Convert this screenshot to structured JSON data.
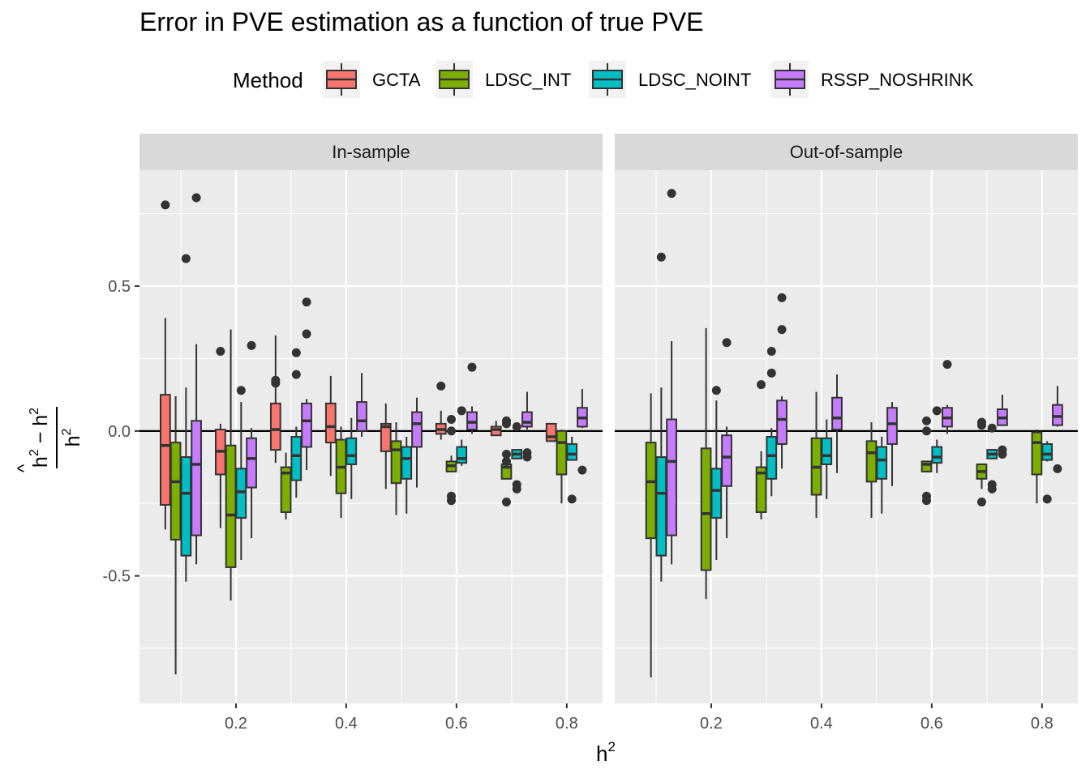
{
  "chart_data": {
    "type": "boxplot",
    "title": "Error in PVE estimation as a function of true PVE",
    "xlabel": "h2",
    "ylabel": "(ĥ2 − h2) / h2",
    "legend": {
      "title": "Method",
      "position": "top",
      "entries": [
        {
          "name": "GCTA",
          "color": "#F8766D"
        },
        {
          "name": "LDSC_INT",
          "color": "#7CAE00"
        },
        {
          "name": "LDSC_NOINT",
          "color": "#00BFC4"
        },
        {
          "name": "RSSP_NOSHRINK",
          "color": "#C77CFF"
        }
      ]
    },
    "xlim": [
      0.025,
      0.865
    ],
    "ylim": [
      -0.94,
      0.9
    ],
    "x_ticks": [
      0.2,
      0.4,
      0.6,
      0.8
    ],
    "x_tick_labels": [
      "0.2",
      "0.4",
      "0.6",
      "0.8"
    ],
    "y_ticks": [
      -0.5,
      0.0,
      0.5
    ],
    "y_tick_labels": [
      "-0.5",
      "0.0",
      "0.5"
    ],
    "reference_line_y": 0,
    "grid": true,
    "panels": [
      {
        "name": "In-sample",
        "boxes": [
          {
            "method": "GCTA",
            "x": 0.1,
            "lw": -0.34,
            "q1": -0.255,
            "med": -0.05,
            "q3": 0.125,
            "uw": 0.39,
            "out": [
              0.78
            ]
          },
          {
            "method": "LDSC_INT",
            "x": 0.1,
            "lw": -0.84,
            "q1": -0.375,
            "med": -0.175,
            "q3": -0.04,
            "uw": 0.12,
            "out": []
          },
          {
            "method": "LDSC_NOINT",
            "x": 0.1,
            "lw": -0.52,
            "q1": -0.43,
            "med": -0.215,
            "q3": -0.09,
            "uw": 0.15,
            "out": [
              0.595
            ]
          },
          {
            "method": "RSSP_NOSHRINK",
            "x": 0.1,
            "lw": -0.46,
            "q1": -0.36,
            "med": -0.115,
            "q3": 0.035,
            "uw": 0.3,
            "out": [
              0.805
            ]
          },
          {
            "method": "GCTA",
            "x": 0.2,
            "lw": -0.335,
            "q1": -0.15,
            "med": -0.07,
            "q3": 0.005,
            "uw": 0.025,
            "out": [
              0.275
            ]
          },
          {
            "method": "LDSC_INT",
            "x": 0.2,
            "lw": -0.585,
            "q1": -0.47,
            "med": -0.29,
            "q3": -0.05,
            "uw": 0.35,
            "out": []
          },
          {
            "method": "LDSC_NOINT",
            "x": 0.2,
            "lw": -0.445,
            "q1": -0.3,
            "med": -0.21,
            "q3": -0.13,
            "uw": 0.1,
            "out": [
              0.14
            ]
          },
          {
            "method": "RSSP_NOSHRINK",
            "x": 0.2,
            "lw": -0.37,
            "q1": -0.195,
            "med": -0.095,
            "q3": -0.025,
            "uw": 0.01,
            "out": [
              0.295
            ]
          },
          {
            "method": "GCTA",
            "x": 0.3,
            "lw": -0.11,
            "q1": -0.065,
            "med": 0.005,
            "q3": 0.095,
            "uw": 0.33,
            "out": [
              0.165,
              0.175
            ]
          },
          {
            "method": "LDSC_INT",
            "x": 0.3,
            "lw": -0.305,
            "q1": -0.28,
            "med": -0.145,
            "q3": -0.125,
            "uw": -0.075,
            "out": []
          },
          {
            "method": "LDSC_NOINT",
            "x": 0.3,
            "lw": -0.23,
            "q1": -0.17,
            "med": -0.085,
            "q3": -0.02,
            "uw": 0.015,
            "out": [
              0.27,
              0.195
            ]
          },
          {
            "method": "RSSP_NOSHRINK",
            "x": 0.3,
            "lw": -0.135,
            "q1": -0.055,
            "med": 0.035,
            "q3": 0.095,
            "uw": 0.11,
            "out": [
              0.445,
              0.335
            ]
          },
          {
            "method": "GCTA",
            "x": 0.4,
            "lw": -0.155,
            "q1": -0.04,
            "med": 0.015,
            "q3": 0.095,
            "uw": 0.19,
            "out": []
          },
          {
            "method": "LDSC_INT",
            "x": 0.4,
            "lw": -0.3,
            "q1": -0.215,
            "med": -0.125,
            "q3": -0.03,
            "uw": 0.015,
            "out": []
          },
          {
            "method": "LDSC_NOINT",
            "x": 0.4,
            "lw": -0.235,
            "q1": -0.115,
            "med": -0.085,
            "q3": -0.025,
            "uw": 0.045,
            "out": []
          },
          {
            "method": "RSSP_NOSHRINK",
            "x": 0.4,
            "lw": -0.02,
            "q1": 0.0,
            "med": 0.035,
            "q3": 0.1,
            "uw": 0.2,
            "out": []
          },
          {
            "method": "GCTA",
            "x": 0.5,
            "lw": -0.2,
            "q1": -0.07,
            "med": 0.015,
            "q3": 0.025,
            "uw": 0.095,
            "out": []
          },
          {
            "method": "LDSC_INT",
            "x": 0.5,
            "lw": -0.29,
            "q1": -0.18,
            "med": -0.065,
            "q3": -0.035,
            "uw": 0.03,
            "out": []
          },
          {
            "method": "LDSC_NOINT",
            "x": 0.5,
            "lw": -0.285,
            "q1": -0.165,
            "med": -0.095,
            "q3": -0.055,
            "uw": -0.02,
            "out": []
          },
          {
            "method": "RSSP_NOSHRINK",
            "x": 0.5,
            "lw": -0.195,
            "q1": -0.055,
            "med": 0.025,
            "q3": 0.065,
            "uw": 0.115,
            "out": []
          },
          {
            "method": "GCTA",
            "x": 0.6,
            "lw": -0.03,
            "q1": -0.01,
            "med": 0.005,
            "q3": 0.025,
            "uw": 0.07,
            "out": [
              0.155
            ]
          },
          {
            "method": "LDSC_INT",
            "x": 0.6,
            "lw": -0.14,
            "q1": -0.14,
            "med": -0.12,
            "q3": -0.105,
            "uw": -0.085,
            "out": [
              0.04,
              0.0,
              -0.225,
              -0.24
            ]
          },
          {
            "method": "LDSC_NOINT",
            "x": 0.6,
            "lw": -0.12,
            "q1": -0.11,
            "med": -0.095,
            "q3": -0.055,
            "uw": -0.03,
            "out": [
              0.07
            ]
          },
          {
            "method": "RSSP_NOSHRINK",
            "x": 0.6,
            "lw": -0.01,
            "q1": 0.005,
            "med": 0.03,
            "q3": 0.065,
            "uw": 0.085,
            "out": [
              0.22
            ]
          },
          {
            "method": "GCTA",
            "x": 0.7,
            "lw": -0.015,
            "q1": -0.015,
            "med": 0.005,
            "q3": 0.015,
            "uw": 0.035,
            "out": []
          },
          {
            "method": "LDSC_INT",
            "x": 0.7,
            "lw": -0.165,
            "q1": -0.165,
            "med": -0.125,
            "q3": -0.115,
            "uw": -0.105,
            "out": [
              0.035,
              0.025,
              -0.08,
              -0.105,
              -0.245
            ]
          },
          {
            "method": "LDSC_NOINT",
            "x": 0.7,
            "lw": -0.095,
            "q1": -0.095,
            "med": -0.08,
            "q3": -0.065,
            "uw": -0.065,
            "out": [
              0.015,
              -0.185,
              -0.2
            ]
          },
          {
            "method": "RSSP_NOSHRINK",
            "x": 0.7,
            "lw": 0.005,
            "q1": 0.015,
            "med": 0.03,
            "q3": 0.065,
            "uw": 0.135,
            "out": [
              -0.075,
              -0.09
            ]
          },
          {
            "method": "GCTA",
            "x": 0.8,
            "lw": -0.035,
            "q1": -0.035,
            "med": -0.02,
            "q3": 0.025,
            "uw": 0.025,
            "out": []
          },
          {
            "method": "LDSC_INT",
            "x": 0.8,
            "lw": -0.25,
            "q1": -0.15,
            "med": -0.04,
            "q3": 0.0,
            "uw": 0.005,
            "out": []
          },
          {
            "method": "LDSC_NOINT",
            "x": 0.8,
            "lw": -0.1,
            "q1": -0.1,
            "med": -0.08,
            "q3": -0.045,
            "uw": -0.02,
            "out": [
              -0.235
            ]
          },
          {
            "method": "RSSP_NOSHRINK",
            "x": 0.8,
            "lw": 0.01,
            "q1": 0.015,
            "med": 0.045,
            "q3": 0.08,
            "uw": 0.145,
            "out": [
              -0.135
            ]
          }
        ]
      },
      {
        "name": "Out-of-sample",
        "boxes": [
          {
            "method": "LDSC_INT",
            "x": 0.1,
            "lw": -0.85,
            "q1": -0.37,
            "med": -0.175,
            "q3": -0.04,
            "uw": 0.13,
            "out": []
          },
          {
            "method": "LDSC_NOINT",
            "x": 0.1,
            "lw": -0.52,
            "q1": -0.43,
            "med": -0.215,
            "q3": -0.09,
            "uw": 0.15,
            "out": [
              0.6
            ]
          },
          {
            "method": "RSSP_NOSHRINK",
            "x": 0.1,
            "lw": -0.46,
            "q1": -0.36,
            "med": -0.105,
            "q3": 0.04,
            "uw": 0.31,
            "out": [
              0.82
            ]
          },
          {
            "method": "LDSC_INT",
            "x": 0.2,
            "lw": -0.58,
            "q1": -0.48,
            "med": -0.285,
            "q3": -0.06,
            "uw": 0.355,
            "out": []
          },
          {
            "method": "LDSC_NOINT",
            "x": 0.2,
            "lw": -0.445,
            "q1": -0.3,
            "med": -0.205,
            "q3": -0.13,
            "uw": 0.105,
            "out": [
              0.14
            ]
          },
          {
            "method": "RSSP_NOSHRINK",
            "x": 0.2,
            "lw": -0.37,
            "q1": -0.19,
            "med": -0.09,
            "q3": -0.015,
            "uw": 0.015,
            "out": [
              0.305
            ]
          },
          {
            "method": "LDSC_INT",
            "x": 0.3,
            "lw": -0.305,
            "q1": -0.28,
            "med": -0.145,
            "q3": -0.125,
            "uw": -0.07,
            "out": [
              0.16
            ]
          },
          {
            "method": "LDSC_NOINT",
            "x": 0.3,
            "lw": -0.225,
            "q1": -0.165,
            "med": -0.085,
            "q3": -0.02,
            "uw": 0.01,
            "out": [
              0.275,
              0.2
            ]
          },
          {
            "method": "RSSP_NOSHRINK",
            "x": 0.3,
            "lw": -0.13,
            "q1": -0.045,
            "med": 0.04,
            "q3": 0.105,
            "uw": 0.12,
            "out": [
              0.46,
              0.35
            ]
          },
          {
            "method": "LDSC_INT",
            "x": 0.4,
            "lw": -0.3,
            "q1": -0.22,
            "med": -0.125,
            "q3": -0.025,
            "uw": 0.135,
            "out": []
          },
          {
            "method": "LDSC_NOINT",
            "x": 0.4,
            "lw": -0.235,
            "q1": -0.115,
            "med": -0.085,
            "q3": -0.025,
            "uw": 0.04,
            "out": []
          },
          {
            "method": "RSSP_NOSHRINK",
            "x": 0.4,
            "lw": -0.145,
            "q1": 0.005,
            "med": 0.045,
            "q3": 0.115,
            "uw": 0.195,
            "out": []
          },
          {
            "method": "LDSC_INT",
            "x": 0.5,
            "lw": -0.3,
            "q1": -0.175,
            "med": -0.075,
            "q3": -0.035,
            "uw": 0.03,
            "out": []
          },
          {
            "method": "LDSC_NOINT",
            "x": 0.5,
            "lw": -0.285,
            "q1": -0.165,
            "med": -0.1,
            "q3": -0.055,
            "uw": -0.02,
            "out": []
          },
          {
            "method": "RSSP_NOSHRINK",
            "x": 0.5,
            "lw": -0.19,
            "q1": -0.045,
            "med": 0.025,
            "q3": 0.08,
            "uw": 0.1,
            "out": []
          },
          {
            "method": "LDSC_INT",
            "x": 0.6,
            "lw": -0.14,
            "q1": -0.14,
            "med": -0.115,
            "q3": -0.105,
            "uw": -0.105,
            "out": [
              0.035,
              0.0,
              -0.225,
              -0.24
            ]
          },
          {
            "method": "LDSC_NOINT",
            "x": 0.6,
            "lw": -0.145,
            "q1": -0.11,
            "med": -0.09,
            "q3": -0.055,
            "uw": -0.03,
            "out": [
              0.07
            ]
          },
          {
            "method": "RSSP_NOSHRINK",
            "x": 0.6,
            "lw": -0.01,
            "q1": 0.015,
            "med": 0.045,
            "q3": 0.08,
            "uw": 0.09,
            "out": [
              0.23
            ]
          },
          {
            "method": "LDSC_INT",
            "x": 0.7,
            "lw": -0.2,
            "q1": -0.165,
            "med": -0.14,
            "q3": -0.115,
            "uw": -0.115,
            "out": [
              0.03,
              0.02,
              -0.245
            ]
          },
          {
            "method": "LDSC_NOINT",
            "x": 0.7,
            "lw": -0.095,
            "q1": -0.095,
            "med": -0.08,
            "q3": -0.065,
            "uw": -0.065,
            "out": [
              0.01,
              -0.185,
              -0.2
            ]
          },
          {
            "method": "RSSP_NOSHRINK",
            "x": 0.7,
            "lw": 0.02,
            "q1": 0.02,
            "med": 0.045,
            "q3": 0.075,
            "uw": 0.125,
            "out": [
              -0.065,
              -0.08
            ]
          },
          {
            "method": "LDSC_INT",
            "x": 0.8,
            "lw": -0.25,
            "q1": -0.15,
            "med": -0.04,
            "q3": -0.005,
            "uw": 0.005,
            "out": []
          },
          {
            "method": "LDSC_NOINT",
            "x": 0.8,
            "lw": -0.105,
            "q1": -0.1,
            "med": -0.08,
            "q3": -0.045,
            "uw": -0.035,
            "out": [
              -0.235
            ]
          },
          {
            "method": "RSSP_NOSHRINK",
            "x": 0.8,
            "lw": 0.015,
            "q1": 0.02,
            "med": 0.05,
            "q3": 0.09,
            "uw": 0.155,
            "out": [
              -0.13
            ]
          }
        ]
      }
    ]
  }
}
